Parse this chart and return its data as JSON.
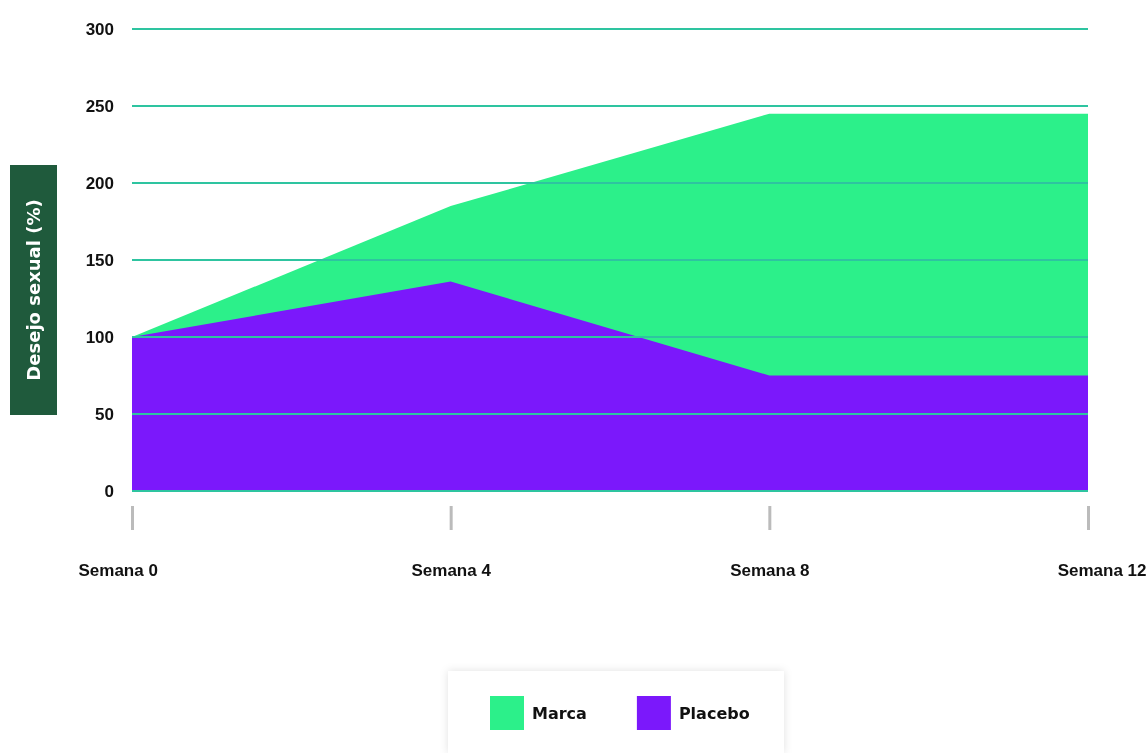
{
  "chart_data": {
    "type": "area",
    "ylabel": "Desejo sexual (%)",
    "categories": [
      "Semana 0",
      "Semana 4",
      "Semana 8",
      "Semana 12"
    ],
    "series": [
      {
        "name": "Marca",
        "color": "#2cf08a",
        "values": [
          100,
          185,
          245,
          245
        ]
      },
      {
        "name": "Placebo",
        "color": "#7b18fb",
        "values": [
          100,
          136,
          75,
          75
        ]
      }
    ],
    "ylim": [
      0,
      300
    ],
    "yticks": [
      0,
      50,
      100,
      150,
      200,
      250,
      300
    ],
    "grid": "y",
    "legend": "bottom"
  }
}
